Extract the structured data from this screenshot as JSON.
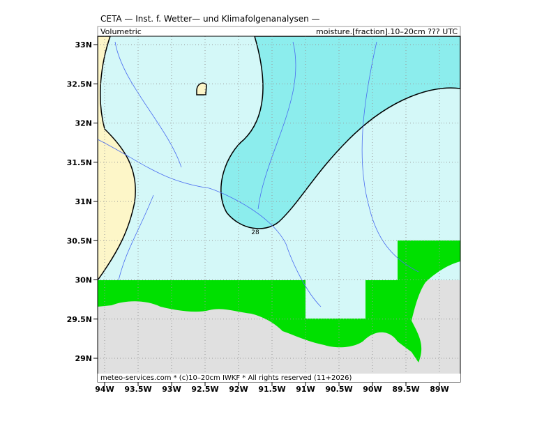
{
  "header": {
    "title": "CETA — Inst. f. Wetter— und Klimafolgenanalysen —",
    "left": "Volumetric",
    "right": "moisture.[fraction].10–20cm ??? UTC"
  },
  "map": {
    "lat_labels": [
      "33N",
      "32.5N",
      "32N",
      "31.5N",
      "31N",
      "30.5N",
      "30N",
      "29.5N",
      "29N"
    ],
    "lon_labels": [
      "94W",
      "93.5W",
      "93W",
      "92.5W",
      "92W",
      "91.5W",
      "91W",
      "90.5W",
      "90W",
      "89.5W",
      "89W"
    ],
    "contour_label": "28"
  },
  "footer": "meteo-services.com * (c)10–20cm IWKF * All rights reserved (11+2026)"
}
